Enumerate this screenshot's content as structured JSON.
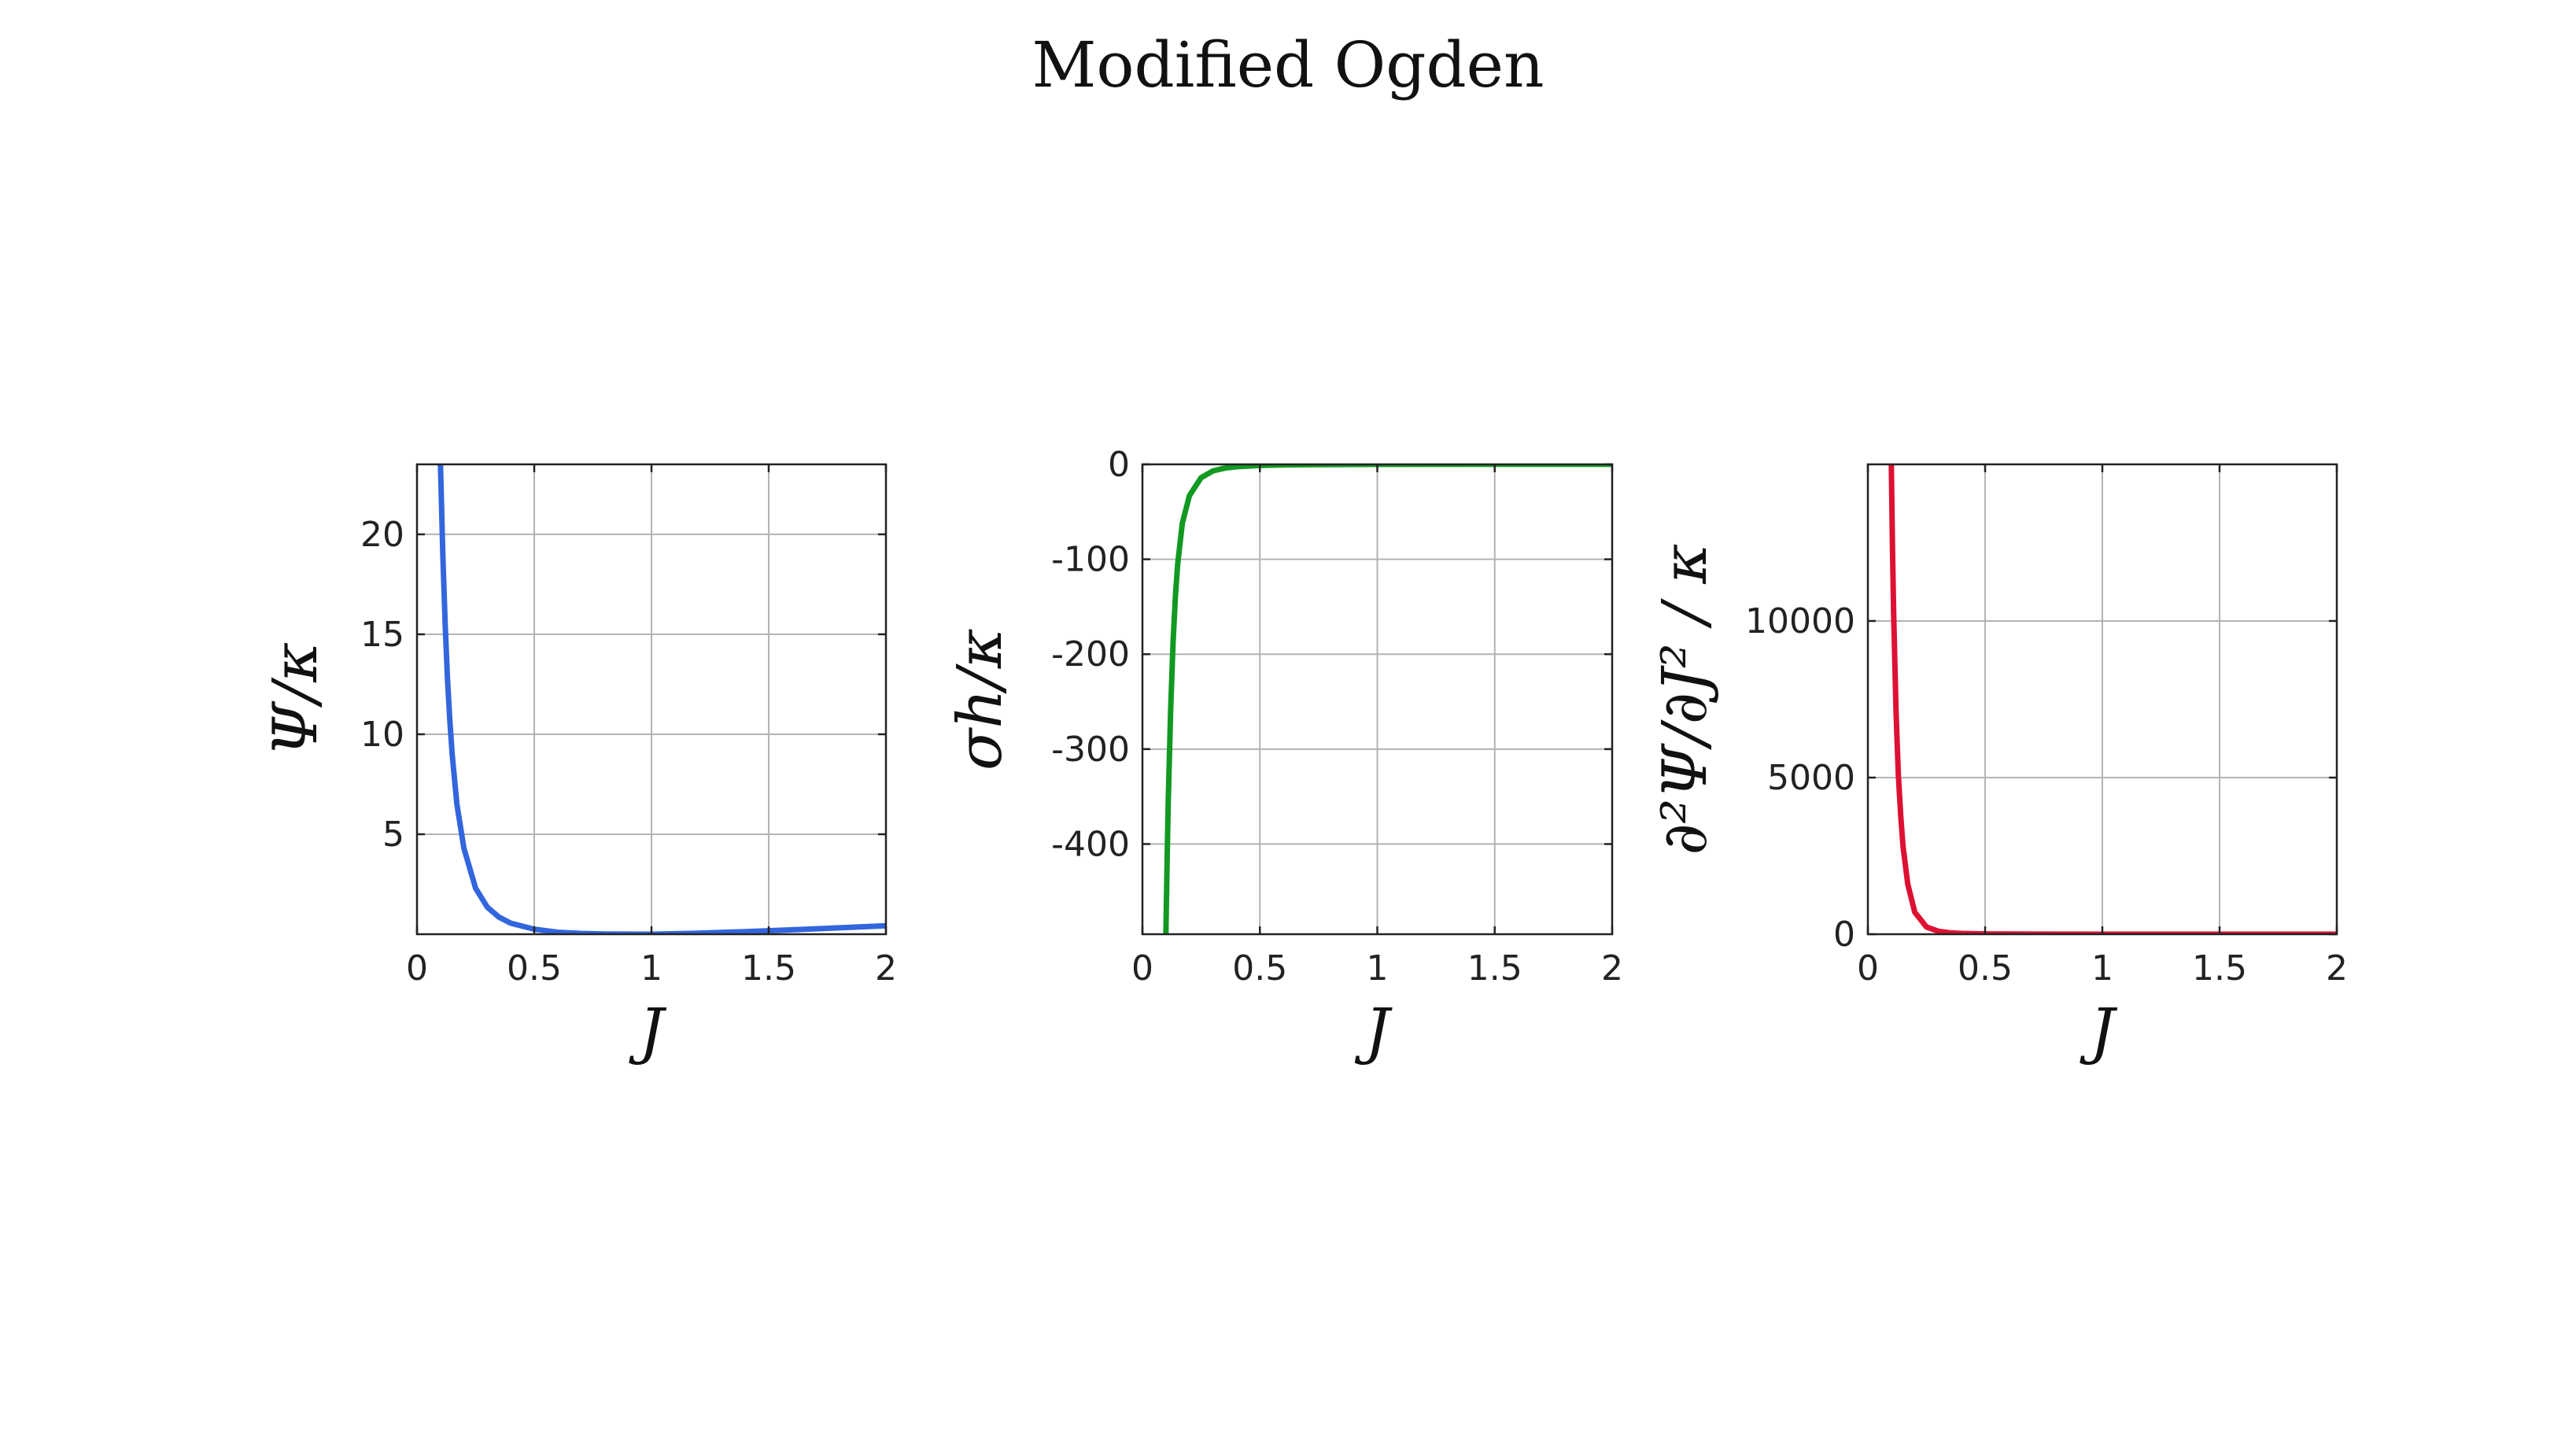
{
  "figure": {
    "title": "Modified Ogden"
  },
  "chart_data": [
    {
      "type": "line",
      "xlabel": "J",
      "ylabel": "Ψ/κ",
      "xlim": [
        0,
        2
      ],
      "ylim": [
        0,
        23.5
      ],
      "xticks": [
        0,
        0.5,
        1,
        1.5,
        2
      ],
      "xtick_labels": [
        "0",
        "0.5",
        "1",
        "1.5",
        "2"
      ],
      "yticks": [
        5,
        10,
        15,
        20
      ],
      "ytick_labels": [
        "5",
        "10",
        "15",
        "20"
      ],
      "grid": true,
      "color": "#3366dd",
      "series": [
        {
          "x": [
            0.1,
            0.11,
            0.12,
            0.13,
            0.14,
            0.15,
            0.17,
            0.2,
            0.25,
            0.3,
            0.35,
            0.4,
            0.5,
            0.6,
            0.7,
            0.8,
            0.9,
            1.0,
            1.2,
            1.4,
            1.6,
            1.8,
            2.0
          ],
          "y": [
            23.5,
            19.0,
            15.5,
            12.8,
            10.7,
            9.0,
            6.5,
            4.3,
            2.3,
            1.35,
            0.85,
            0.55,
            0.25,
            0.1,
            0.04,
            0.01,
            0.003,
            0.0,
            0.05,
            0.13,
            0.22,
            0.32,
            0.42
          ]
        }
      ]
    },
    {
      "type": "line",
      "xlabel": "J",
      "ylabel": "σh/κ",
      "xlim": [
        0,
        2
      ],
      "ylim": [
        -495,
        0
      ],
      "xticks": [
        0,
        0.5,
        1,
        1.5,
        2
      ],
      "xtick_labels": [
        "0",
        "0.5",
        "1",
        "1.5",
        "2"
      ],
      "yticks": [
        0,
        -100,
        -200,
        -300,
        -400
      ],
      "ytick_labels": [
        "0",
        "-100",
        "-200",
        "-300",
        "-400"
      ],
      "grid": true,
      "color": "#119922",
      "series": [
        {
          "x": [
            0.1,
            0.105,
            0.11,
            0.12,
            0.13,
            0.14,
            0.15,
            0.17,
            0.2,
            0.25,
            0.3,
            0.35,
            0.4,
            0.5,
            0.6,
            0.8,
            1.0,
            1.5,
            2.0
          ],
          "y": [
            -495,
            -420,
            -355,
            -260,
            -190,
            -140,
            -105,
            -62,
            -33,
            -14,
            -7,
            -4,
            -2.5,
            -1.2,
            -0.6,
            -0.2,
            0,
            0.05,
            0.08
          ]
        }
      ]
    },
    {
      "type": "line",
      "xlabel": "J",
      "ylabel": "∂²Ψ/∂J² / κ",
      "xlim": [
        0,
        2
      ],
      "ylim": [
        0,
        15000
      ],
      "xticks": [
        0,
        0.5,
        1,
        1.5,
        2
      ],
      "xtick_labels": [
        "0",
        "0.5",
        "1",
        "1.5",
        "2"
      ],
      "yticks": [
        0,
        5000,
        10000
      ],
      "ytick_labels": [
        "0",
        "5000",
        "10000"
      ],
      "grid": true,
      "color": "#dd1133",
      "series": [
        {
          "x": [
            0.1,
            0.105,
            0.11,
            0.12,
            0.13,
            0.14,
            0.15,
            0.17,
            0.2,
            0.25,
            0.3,
            0.35,
            0.4,
            0.5,
            0.7,
            1.0,
            1.5,
            2.0
          ],
          "y": [
            15000,
            12300,
            10200,
            7100,
            5100,
            3800,
            2800,
            1600,
            700,
            230,
            95,
            45,
            25,
            10,
            3,
            1,
            0.5,
            0.3
          ]
        }
      ]
    }
  ]
}
